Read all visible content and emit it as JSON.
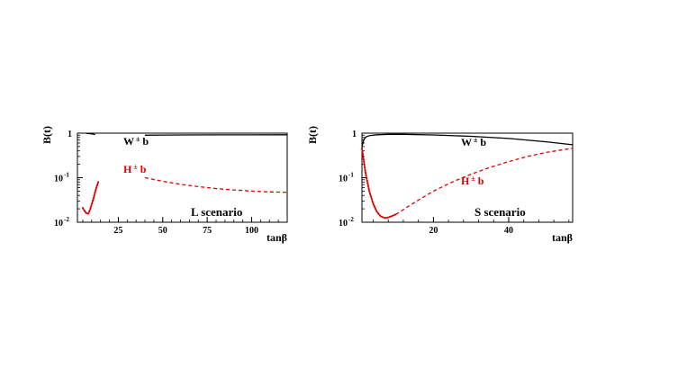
{
  "chart_data": [
    {
      "type": "line",
      "ylabel": "B(t)",
      "xlabel": "tanβ",
      "annotation": "L scenario",
      "xlim": [
        2,
        120
      ],
      "ylim": [
        0.01,
        1.0
      ],
      "yscale": "log",
      "xticks": [
        {
          "value": 25,
          "label": "25"
        },
        {
          "value": 50,
          "label": "50"
        },
        {
          "value": 75,
          "label": "75"
        },
        {
          "value": 100,
          "label": "100"
        }
      ],
      "yticks": [
        {
          "value": 1,
          "base": "1",
          "exp": ""
        },
        {
          "value": 0.1,
          "base": "10",
          "exp": "-1"
        },
        {
          "value": 0.01,
          "base": "10",
          "exp": "-2"
        }
      ],
      "series": [
        {
          "name": "W",
          "name_sup": "±",
          "name_suffix": " b",
          "label_color": "#000000",
          "color": "#000000",
          "style": "solid",
          "segments": [
            [
              [
                7,
                0.985
              ],
              [
                9,
                0.975
              ],
              [
                11,
                0.95
              ],
              [
                12,
                0.92
              ]
            ],
            [
              [
                40,
                0.9
              ],
              [
                50,
                0.905
              ],
              [
                60,
                0.91
              ],
              [
                80,
                0.915
              ],
              [
                100,
                0.917
              ],
              [
                120,
                0.918
              ]
            ]
          ]
        },
        {
          "name": "H",
          "name_sup": "±",
          "name_suffix": " b",
          "label_color": "#e00000",
          "color": "#e00000",
          "style": "dotted",
          "segments": [
            [
              [
                5,
                0.021
              ],
              [
                6,
                0.018
              ],
              [
                7,
                0.016
              ],
              [
                8,
                0.0155
              ],
              [
                9,
                0.0185
              ],
              [
                10,
                0.025
              ],
              [
                11,
                0.034
              ],
              [
                12,
                0.048
              ],
              [
                13,
                0.066
              ],
              [
                14,
                0.086
              ]
            ]
          ]
        },
        {
          "name": "",
          "color": "#e00000",
          "style": "dashed",
          "segments": [
            [
              [
                40,
                0.1
              ],
              [
                50,
                0.083
              ],
              [
                60,
                0.071
              ],
              [
                70,
                0.063
              ],
              [
                80,
                0.057
              ],
              [
                90,
                0.053
              ],
              [
                100,
                0.05
              ],
              [
                110,
                0.048
              ],
              [
                120,
                0.047
              ]
            ]
          ]
        }
      ]
    },
    {
      "type": "line",
      "ylabel": "B(t)",
      "xlabel": "tanβ",
      "annotation": "S scenario",
      "xlim": [
        1,
        57
      ],
      "ylim": [
        0.01,
        1.0
      ],
      "yscale": "log",
      "xticks": [
        {
          "value": 20,
          "label": "20"
        },
        {
          "value": 40,
          "label": "40"
        }
      ],
      "yticks": [
        {
          "value": 1,
          "base": "1",
          "exp": ""
        },
        {
          "value": 0.1,
          "base": "10",
          "exp": "-1"
        },
        {
          "value": 0.01,
          "base": "10",
          "exp": "-2"
        }
      ],
      "series": [
        {
          "name": "W",
          "name_sup": "±",
          "name_suffix": " b",
          "label_color": "#000000",
          "color": "#000000",
          "style": "solid",
          "segments": [
            [
              [
                1,
                0.5
              ],
              [
                1.5,
                0.72
              ],
              [
                2,
                0.82
              ],
              [
                3,
                0.88
              ],
              [
                5,
                0.92
              ],
              [
                8,
                0.94
              ],
              [
                12,
                0.94
              ],
              [
                20,
                0.91
              ],
              [
                30,
                0.85
              ],
              [
                40,
                0.76
              ],
              [
                50,
                0.64
              ],
              [
                57,
                0.55
              ]
            ]
          ]
        },
        {
          "name": "H",
          "name_sup": "±",
          "name_suffix": " b",
          "label_color": "#e00000",
          "color": "#e00000",
          "style": "dotted",
          "segments": [
            [
              [
                1,
                0.46
              ],
              [
                2,
                0.12
              ],
              [
                3,
                0.048
              ],
              [
                4,
                0.026
              ],
              [
                5,
                0.017
              ],
              [
                6,
                0.0135
              ],
              [
                7,
                0.0125
              ],
              [
                8,
                0.0128
              ],
              [
                10,
                0.015
              ]
            ]
          ]
        },
        {
          "name": "",
          "color": "#e00000",
          "style": "dashed",
          "segments": [
            [
              [
                10,
                0.015
              ],
              [
                15,
                0.028
              ],
              [
                20,
                0.05
              ],
              [
                25,
                0.08
              ],
              [
                30,
                0.12
              ],
              [
                35,
                0.17
              ],
              [
                40,
                0.23
              ],
              [
                45,
                0.3
              ],
              [
                50,
                0.37
              ],
              [
                57,
                0.46
              ]
            ]
          ]
        }
      ]
    }
  ]
}
